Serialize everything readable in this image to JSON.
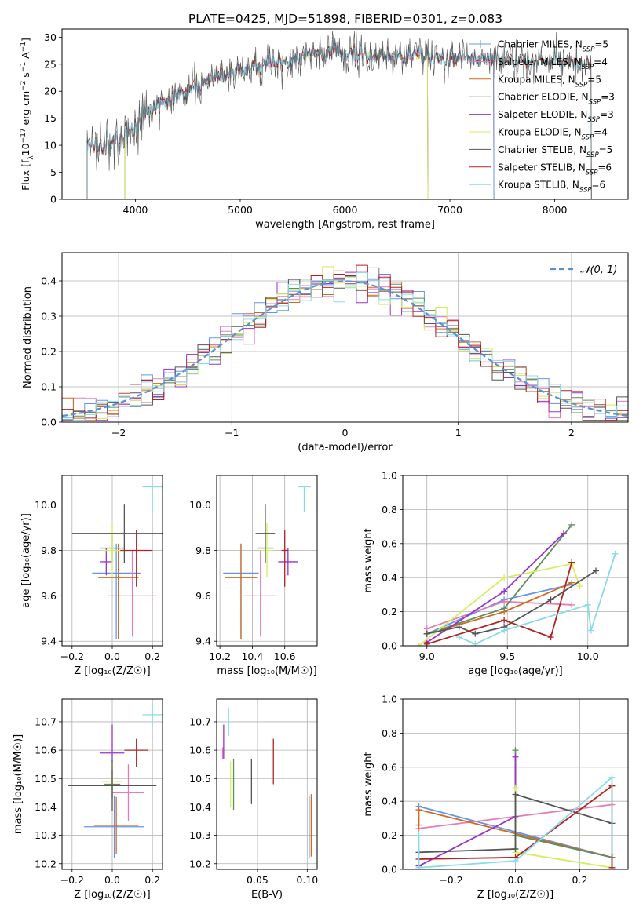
{
  "title": "PLATE=0425, MJD=51898, FIBERID=0301, z=0.083",
  "colors": {
    "Chabrier MILES": "#6495ED",
    "Salpeter MILES": "#E87BB5",
    "Kroupa MILES": "#D2691E",
    "Chabrier ELODIE": "#5F8D5F",
    "Salpeter ELODIE": "#9932CC",
    "Kroupa ELODIE": "#D4EE5E",
    "Chabrier STELIB": "#555555",
    "Salpeter STELIB": "#B22222",
    "Kroupa STELIB": "#87DCE8"
  },
  "chart_data": [
    {
      "id": "spectrum",
      "type": "line",
      "xlabel": "wavelength [Angstrom, rest frame]",
      "ylabel_parts": [
        "Flux [f",
        "λ",
        "10",
        "−17",
        " erg cm",
        "−2",
        " s",
        "−1",
        " A",
        "−1",
        "]"
      ],
      "xlim": [
        3300,
        8700
      ],
      "ylim": [
        0,
        31.5
      ],
      "xticks": [
        4000,
        5000,
        6000,
        7000,
        8000
      ],
      "yticks": [
        0,
        5,
        10,
        15,
        20,
        25,
        30
      ],
      "grid": false,
      "legend_placement": "top-right",
      "continuum": {
        "x": [
          3540,
          3700,
          3800,
          3900,
          4000,
          4100,
          4300,
          4500,
          4700,
          4900,
          5100,
          5300,
          5500,
          5800,
          6000,
          6200,
          6500,
          6800,
          7000,
          7200,
          7400,
          7600,
          7800,
          8000,
          8200,
          8350
        ],
        "y": [
          9,
          10,
          10.5,
          12,
          14,
          16.5,
          18,
          20,
          22,
          23.5,
          24.5,
          25.5,
          26,
          27,
          27,
          27,
          26.5,
          26.5,
          26,
          26,
          26,
          25.8,
          25.5,
          25.5,
          25.2,
          25
        ]
      },
      "series": [
        {
          "name": "Chabrier MILES",
          "nssp": "5",
          "xrange": [
            3540,
            7420
          ]
        },
        {
          "name": "Salpeter MILES",
          "nssp": "4",
          "xrange": [
            3540,
            7420
          ]
        },
        {
          "name": "Kroupa MILES",
          "nssp": "5",
          "xrange": [
            3540,
            7420
          ]
        },
        {
          "name": "Chabrier ELODIE",
          "nssp": "3",
          "xrange": [
            3900,
            6790
          ]
        },
        {
          "name": "Salpeter ELODIE",
          "nssp": "3",
          "xrange": [
            3900,
            6790
          ]
        },
        {
          "name": "Kroupa ELODIE",
          "nssp": "4",
          "xrange": [
            3900,
            6790
          ]
        },
        {
          "name": "Chabrier STELIB",
          "nssp": "5",
          "xrange": [
            3540,
            8350
          ]
        },
        {
          "name": "Salpeter STELIB",
          "nssp": "6",
          "xrange": [
            3540,
            8350
          ]
        },
        {
          "name": "Kroupa STELIB",
          "nssp": "6",
          "xrange": [
            3540,
            8350
          ]
        }
      ]
    },
    {
      "id": "residuals",
      "type": "line",
      "xlabel": "(data-model)/error",
      "ylabel": "Normed distribution",
      "xlim": [
        -2.5,
        2.5
      ],
      "ylim": [
        0,
        0.48
      ],
      "xticks": [
        -2,
        -1,
        0,
        1,
        2
      ],
      "yticks": [
        0.0,
        0.1,
        0.2,
        0.3,
        0.4
      ],
      "grid": true,
      "legend_placement": "top-right",
      "gaussian_label": "𝒩(0, 1)",
      "bin_width": 0.1,
      "x_start": -2.5
    },
    {
      "id": "age-vs-Z",
      "type": "scatter",
      "xlabel": "Z [log₁₀(Z/Z☉)]",
      "ylabel": "age  [log₁₀(age/yr)]",
      "xlim": [
        -0.25,
        0.25
      ],
      "ylim": [
        9.38,
        10.13
      ],
      "xticks": [
        -0.2,
        0.0,
        0.2
      ],
      "yticks": [
        9.4,
        9.6,
        9.8,
        10.0
      ],
      "grid": true,
      "points": [
        {
          "s": "Chabrier MILES",
          "x": 0.02,
          "y": 9.7,
          "xe": 0.12,
          "ye": [
            0.29,
            0.13
          ]
        },
        {
          "s": "Salpeter MILES",
          "x": 0.1,
          "y": 9.6,
          "xe": 0.12,
          "ye": [
            0.18,
            0.2
          ]
        },
        {
          "s": "Kroupa MILES",
          "x": 0.03,
          "y": 9.68,
          "xe": 0.1,
          "ye": [
            0.27,
            0.15
          ]
        },
        {
          "s": "Chabrier ELODIE",
          "x": 0.0,
          "y": 9.81,
          "xe": 0.06,
          "ye": [
            0.06,
            0.06
          ]
        },
        {
          "s": "Salpeter ELODIE",
          "x": -0.03,
          "y": 9.75,
          "xe": 0.03,
          "ye": [
            0.06,
            0.06
          ]
        },
        {
          "s": "Kroupa ELODIE",
          "x": 0.0,
          "y": 9.8,
          "xe": 0.05,
          "ye": [
            0.12,
            0.12
          ]
        },
        {
          "s": "Chabrier STELIB",
          "x": 0.06,
          "y": 9.875,
          "xe": 0.26,
          "ye": [
            0.13,
            0.13
          ]
        },
        {
          "s": "Salpeter STELIB",
          "x": 0.12,
          "y": 9.8,
          "xe": 0.08,
          "ye": [
            0.16,
            0.09
          ]
        },
        {
          "s": "Kroupa STELIB",
          "x": 0.2,
          "y": 10.08,
          "xe": 0.05,
          "ye": [
            0.11,
            0.0
          ]
        }
      ]
    },
    {
      "id": "age-vs-mass",
      "type": "scatter",
      "xlabel": "mass [log₁₀(M/M☉)]",
      "xlim": [
        10.18,
        10.8
      ],
      "ylim": [
        9.38,
        10.13
      ],
      "xticks": [
        10.2,
        10.4,
        10.6
      ],
      "yticks": [
        9.4,
        9.6,
        9.8,
        10.0
      ],
      "grid": true,
      "points": [
        {
          "s": "Chabrier MILES",
          "x": 10.33,
          "y": 9.7,
          "xe": 0.11,
          "ye": [
            0.29,
            0.13
          ]
        },
        {
          "s": "Salpeter MILES",
          "x": 10.45,
          "y": 9.6,
          "xe": 0.1,
          "ye": [
            0.18,
            0.2
          ]
        },
        {
          "s": "Kroupa MILES",
          "x": 10.33,
          "y": 9.68,
          "xe": 0.1,
          "ye": [
            0.27,
            0.15
          ]
        },
        {
          "s": "Chabrier ELODIE",
          "x": 10.48,
          "y": 9.81,
          "xe": 0.05,
          "ye": [
            0.06,
            0.06
          ]
        },
        {
          "s": "Salpeter ELODIE",
          "x": 10.62,
          "y": 9.75,
          "xe": 0.06,
          "ye": [
            0.06,
            0.06
          ]
        },
        {
          "s": "Kroupa ELODIE",
          "x": 10.49,
          "y": 9.8,
          "xe": 0.04,
          "ye": [
            0.12,
            0.12
          ]
        },
        {
          "s": "Chabrier STELIB",
          "x": 10.48,
          "y": 9.875,
          "xe": 0.06,
          "ye": [
            0.13,
            0.13
          ]
        },
        {
          "s": "Salpeter STELIB",
          "x": 10.6,
          "y": 9.8,
          "xe": 0.02,
          "ye": [
            0.16,
            0.09
          ]
        },
        {
          "s": "Kroupa STELIB",
          "x": 10.72,
          "y": 10.08,
          "xe": 0.04,
          "ye": [
            0.11,
            0.0
          ]
        }
      ]
    },
    {
      "id": "weight-vs-age",
      "type": "line",
      "xlabel": "age  [log₁₀(age/yr)]",
      "ylabel": "mass weight",
      "xlim": [
        8.85,
        10.25
      ],
      "ylim": [
        0.0,
        1.0
      ],
      "xticks": [
        9.0,
        9.5,
        10.0
      ],
      "yticks": [
        0.0,
        0.2,
        0.4,
        0.6,
        0.8,
        1.0
      ],
      "grid": true,
      "series": [
        {
          "name": "Chabrier MILES",
          "x": [
            9.0,
            9.48,
            9.9
          ],
          "y": [
            0.07,
            0.27,
            0.36
          ]
        },
        {
          "name": "Salpeter MILES",
          "x": [
            9.0,
            9.48,
            9.9
          ],
          "y": [
            0.1,
            0.26,
            0.24
          ]
        },
        {
          "name": "Kroupa MILES",
          "x": [
            9.0,
            9.48,
            9.9
          ],
          "y": [
            0.07,
            0.2,
            0.37
          ]
        },
        {
          "name": "Chabrier ELODIE",
          "x": [
            9.0,
            9.48,
            9.9
          ],
          "y": [
            0.07,
            0.22,
            0.71
          ]
        },
        {
          "name": "Salpeter ELODIE",
          "x": [
            9.0,
            9.48,
            9.85
          ],
          "y": [
            0.02,
            0.32,
            0.66
          ]
        },
        {
          "name": "Kroupa ELODIE",
          "x": [
            8.95,
            9.48,
            9.9,
            9.95
          ],
          "y": [
            0.0,
            0.4,
            0.48,
            0.35
          ]
        },
        {
          "name": "Chabrier STELIB",
          "x": [
            9.0,
            9.2,
            9.3,
            9.48,
            9.77,
            10.05
          ],
          "y": [
            0.07,
            0.11,
            0.07,
            0.11,
            0.27,
            0.44
          ]
        },
        {
          "name": "Salpeter STELIB",
          "x": [
            9.0,
            9.48,
            9.77,
            9.9
          ],
          "y": [
            0.01,
            0.15,
            0.05,
            0.49
          ]
        },
        {
          "name": "Kroupa STELIB",
          "x": [
            9.2,
            9.3,
            9.48,
            10.0,
            10.02,
            10.17
          ],
          "y": [
            0.05,
            0.01,
            0.09,
            0.24,
            0.09,
            0.54
          ]
        }
      ]
    },
    {
      "id": "mass-vs-Z",
      "type": "scatter",
      "xlabel": "Z [log₁₀(Z/Z☉)]",
      "ylabel": "mass [log₁₀(M/M☉)]",
      "xlim": [
        -0.25,
        0.25
      ],
      "ylim": [
        10.18,
        10.78
      ],
      "xticks": [
        -0.2,
        0.0,
        0.2
      ],
      "yticks": [
        10.2,
        10.3,
        10.4,
        10.5,
        10.6,
        10.7
      ],
      "grid": true,
      "points": [
        {
          "s": "Chabrier MILES",
          "x": 0.01,
          "y": 10.33,
          "xe": 0.15,
          "ye": [
            0.11,
            0.11
          ]
        },
        {
          "s": "Salpeter MILES",
          "x": 0.08,
          "y": 10.45,
          "xe": 0.08,
          "ye": [
            0.1,
            0.1
          ]
        },
        {
          "s": "Kroupa MILES",
          "x": 0.02,
          "y": 10.335,
          "xe": 0.11,
          "ye": [
            0.1,
            0.1
          ]
        },
        {
          "s": "Chabrier ELODIE",
          "x": 0.0,
          "y": 10.48,
          "xe": 0.04,
          "ye": [
            0.05,
            0.05
          ]
        },
        {
          "s": "Salpeter ELODIE",
          "x": -0.0,
          "y": 10.59,
          "xe": 0.06,
          "ye": [
            0.03,
            0.1
          ]
        },
        {
          "s": "Kroupa ELODIE",
          "x": 0.0,
          "y": 10.49,
          "xe": 0.05,
          "ye": [
            0.04,
            0.04
          ]
        },
        {
          "s": "Chabrier STELIB",
          "x": 0.0,
          "y": 10.475,
          "xe": 0.22,
          "ye": [
            0.09,
            0.09
          ]
        },
        {
          "s": "Salpeter STELIB",
          "x": 0.12,
          "y": 10.6,
          "xe": 0.06,
          "ye": [
            0.06,
            0.04
          ]
        },
        {
          "s": "Kroupa STELIB",
          "x": 0.2,
          "y": 10.725,
          "xe": 0.05,
          "ye": [
            0.04,
            0.04
          ]
        }
      ]
    },
    {
      "id": "mass-vs-EBV",
      "type": "scatter",
      "xlabel": "E(B-V)",
      "xlim": [
        0.009,
        0.11
      ],
      "ylim": [
        10.18,
        10.78
      ],
      "xticks": [
        0.05,
        0.1
      ],
      "xticklabels": [
        "0.05",
        "0.10"
      ],
      "yticks": [
        10.2,
        10.3,
        10.4,
        10.5,
        10.6,
        10.7
      ],
      "grid": true,
      "points": [
        {
          "s": "Chabrier MILES",
          "x": 0.102,
          "y": 10.33,
          "xe": 0,
          "ye": [
            0.11,
            0.11
          ]
        },
        {
          "s": "Salpeter MILES",
          "x": 0.015,
          "y": 10.59,
          "xe": 0,
          "ye": [
            0.02,
            0.02
          ]
        },
        {
          "s": "Kroupa MILES",
          "x": 0.104,
          "y": 10.335,
          "xe": 0,
          "ye": [
            0.11,
            0.11
          ]
        },
        {
          "s": "Chabrier ELODIE",
          "x": 0.026,
          "y": 10.48,
          "xe": 0,
          "ye": [
            0.09,
            0.09
          ]
        },
        {
          "s": "Salpeter ELODIE",
          "x": 0.016,
          "y": 10.63,
          "xe": 0,
          "ye": [
            0.06,
            0.06
          ]
        },
        {
          "s": "Kroupa ELODIE",
          "x": 0.023,
          "y": 10.48,
          "xe": 0,
          "ye": [
            0.08,
            0.08
          ]
        },
        {
          "s": "Chabrier STELIB",
          "x": 0.044,
          "y": 10.49,
          "xe": 0,
          "ye": [
            0.08,
            0.08
          ]
        },
        {
          "s": "Salpeter STELIB",
          "x": 0.066,
          "y": 10.56,
          "xe": 0,
          "ye": [
            0.08,
            0.08
          ]
        },
        {
          "s": "Kroupa STELIB",
          "x": 0.021,
          "y": 10.7,
          "xe": 0,
          "ye": [
            0.05,
            0.05
          ]
        }
      ]
    },
    {
      "id": "weight-vs-Z",
      "type": "line",
      "xlabel": "Z [log₁₀(Z/Z☉)]",
      "ylabel": "mass weight",
      "xlim": [
        -0.35,
        0.35
      ],
      "ylim": [
        0.0,
        1.0
      ],
      "xticks": [
        -0.2,
        0.0,
        0.2
      ],
      "yticks": [
        0.0,
        0.2,
        0.4,
        0.6,
        0.8,
        1.0
      ],
      "grid": true,
      "series": [
        {
          "name": "Chabrier MILES",
          "x": [
            -0.3,
            0.3
          ],
          "y": [
            0.37,
            0.07
          ]
        },
        {
          "name": "Salpeter MILES",
          "x": [
            -0.3,
            0.3
          ],
          "y": [
            0.24,
            0.38
          ]
        },
        {
          "name": "Kroupa MILES",
          "x": [
            -0.3,
            -0.3,
            0.3
          ],
          "y": [
            0.26,
            0.35,
            0.07
          ]
        },
        {
          "name": "Chabrier ELODIE",
          "x": [
            0.0,
            0.0,
            0.3,
            0.3
          ],
          "y": [
            0.7,
            0.2,
            0.07,
            0.0
          ]
        },
        {
          "name": "Salpeter ELODIE",
          "x": [
            -0.3,
            0.0,
            0.0
          ],
          "y": [
            0.02,
            0.31,
            0.66
          ]
        },
        {
          "name": "Kroupa ELODIE",
          "x": [
            0.0,
            0.0,
            0.3
          ],
          "y": [
            0.48,
            0.1,
            0.01
          ]
        },
        {
          "name": "Chabrier STELIB",
          "x": [
            -0.3,
            0.0,
            0.0,
            0.3
          ],
          "y": [
            0.1,
            0.12,
            0.44,
            0.27
          ]
        },
        {
          "name": "Salpeter STELIB",
          "x": [
            -0.3,
            0.0,
            0.3,
            0.3
          ],
          "y": [
            0.06,
            0.07,
            0.49,
            0.01
          ]
        },
        {
          "name": "Kroupa STELIB",
          "x": [
            -0.3,
            -0.3,
            0.0,
            0.3,
            0.3
          ],
          "y": [
            0.2,
            0.01,
            0.05,
            0.54,
            0.09
          ]
        }
      ]
    }
  ]
}
